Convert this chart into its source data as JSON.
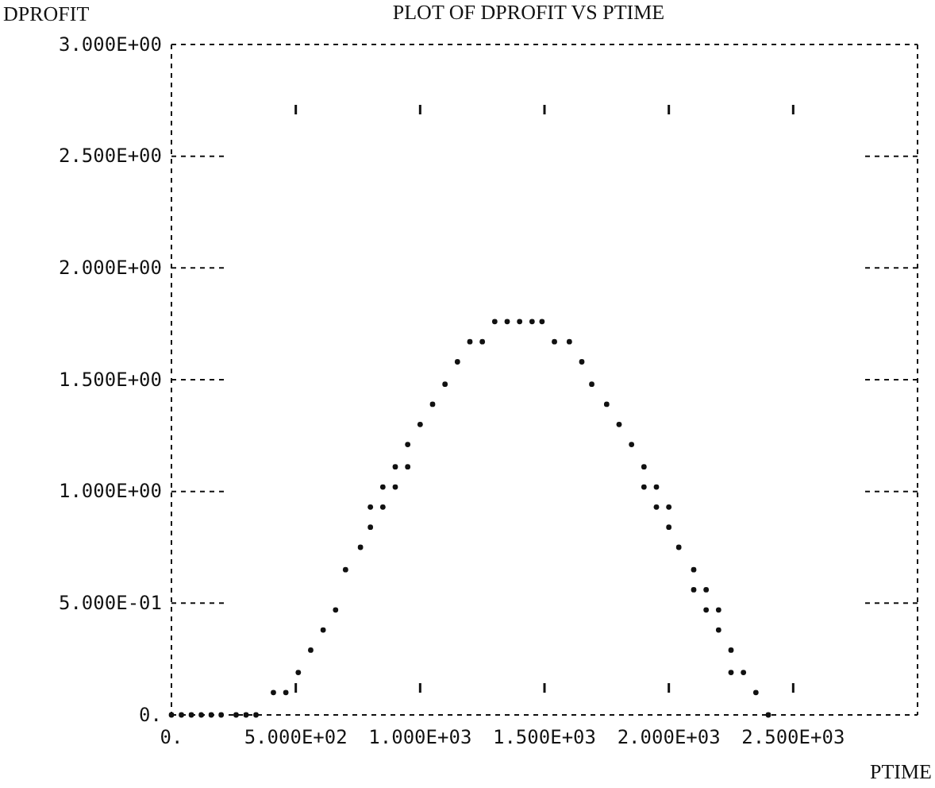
{
  "chart_data": {
    "type": "scatter",
    "title": "PLOT OF DPROFIT VS PTIME",
    "xlabel": "PTIME",
    "ylabel": "DPROFIT",
    "x": [
      0,
      40,
      80,
      120,
      160,
      200,
      260,
      300,
      340,
      410,
      460,
      510,
      560,
      610,
      660,
      700,
      760,
      800,
      800,
      850,
      850,
      900,
      900,
      950,
      950,
      1000,
      1050,
      1100,
      1150,
      1200,
      1250,
      1300,
      1350,
      1400,
      1450,
      1490,
      1540,
      1600,
      1650,
      1690,
      1750,
      1800,
      1850,
      1900,
      1900,
      1950,
      1950,
      2000,
      2000,
      2040,
      2100,
      2100,
      2150,
      2150,
      2200,
      2200,
      2250,
      2250,
      2300,
      2350,
      2400
    ],
    "values": [
      0,
      0,
      0,
      0,
      0,
      0,
      0,
      0,
      0,
      0.1,
      0.1,
      0.19,
      0.29,
      0.38,
      0.47,
      0.65,
      0.75,
      0.84,
      0.93,
      0.93,
      1.02,
      1.02,
      1.11,
      1.11,
      1.21,
      1.3,
      1.39,
      1.48,
      1.58,
      1.67,
      1.67,
      1.76,
      1.76,
      1.76,
      1.76,
      1.76,
      1.67,
      1.67,
      1.58,
      1.48,
      1.39,
      1.3,
      1.21,
      1.11,
      1.02,
      1.02,
      0.93,
      0.93,
      0.84,
      0.75,
      0.65,
      0.56,
      0.56,
      0.47,
      0.47,
      0.38,
      0.29,
      0.19,
      0.19,
      0.1,
      0
    ],
    "color": "#111111",
    "marker": "circle",
    "grid": false,
    "xlim": [
      0,
      3000
    ],
    "ylim": [
      0,
      3
    ],
    "xticks": [
      {
        "value": 0,
        "label": "0."
      },
      {
        "value": 500,
        "label": "5.000E+02"
      },
      {
        "value": 1000,
        "label": "1.000E+03"
      },
      {
        "value": 1500,
        "label": "1.500E+03"
      },
      {
        "value": 2000,
        "label": "2.000E+03"
      },
      {
        "value": 2500,
        "label": "2.500E+03"
      }
    ],
    "yticks": [
      {
        "value": 0,
        "label": "0."
      },
      {
        "value": 0.5,
        "label": "5.000E-01"
      },
      {
        "value": 1,
        "label": "1.000E+00"
      },
      {
        "value": 1.5,
        "label": "1.500E+00"
      },
      {
        "value": 2,
        "label": "2.000E+00"
      },
      {
        "value": 2.5,
        "label": "2.500E+00"
      },
      {
        "value": 3,
        "label": "3.000E+00"
      }
    ]
  }
}
